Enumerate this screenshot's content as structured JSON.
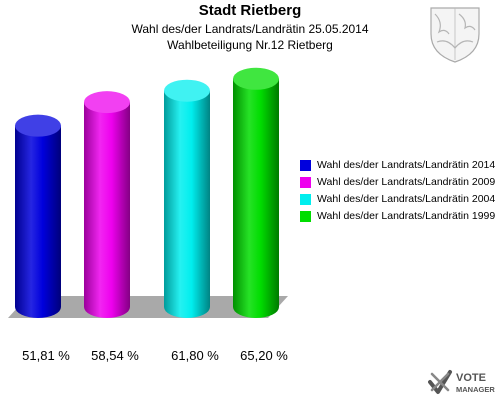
{
  "header": {
    "title": "Stadt Rietberg",
    "subtitle_line1": "Wahl des/der Landrats/Landrätin 25.05.2014",
    "subtitle_line2": "Wahlbeteiligung Nr.12 Rietberg"
  },
  "chart_data": {
    "type": "bar",
    "title": "Stadt Rietberg",
    "subtitle": "Wahl des/der Landrats/Landrätin 25.05.2014 — Wahlbeteiligung Nr.12 Rietberg",
    "categories": [
      "Wahl des/der Landrats/Landrätin 2014",
      "Wahl des/der Landrats/Landrätin 2009",
      "Wahl des/der Landrats/Landrätin 2004",
      "Wahl des/der Landrats/Landrätin 1999"
    ],
    "values": [
      51.81,
      58.54,
      61.8,
      65.2
    ],
    "value_labels": [
      "51,81 %",
      "58,54 %",
      "61,80 %",
      "65,20 %"
    ],
    "colors": [
      "#0000dd",
      "#ee00ee",
      "#00eeee",
      "#00dd00"
    ],
    "ylim": [
      0,
      70
    ],
    "grid": false,
    "legend_position": "right",
    "style": "3d-cylinder"
  },
  "legend": {
    "items": [
      {
        "label": "Wahl des/der Landrats/Landrätin 2014",
        "color": "#0000dd"
      },
      {
        "label": "Wahl des/der Landrats/Landrätin 2009",
        "color": "#ee00ee"
      },
      {
        "label": "Wahl des/der Landrats/Landrätin 2004",
        "color": "#00eeee"
      },
      {
        "label": "Wahl des/der Landrats/Landrätin 1999",
        "color": "#00dd00"
      }
    ]
  },
  "branding": {
    "logo_text_line1": "VOTE",
    "logo_text_line2": "MANAGER",
    "crest_icon": "nrw-coat-of-arms-icon"
  }
}
